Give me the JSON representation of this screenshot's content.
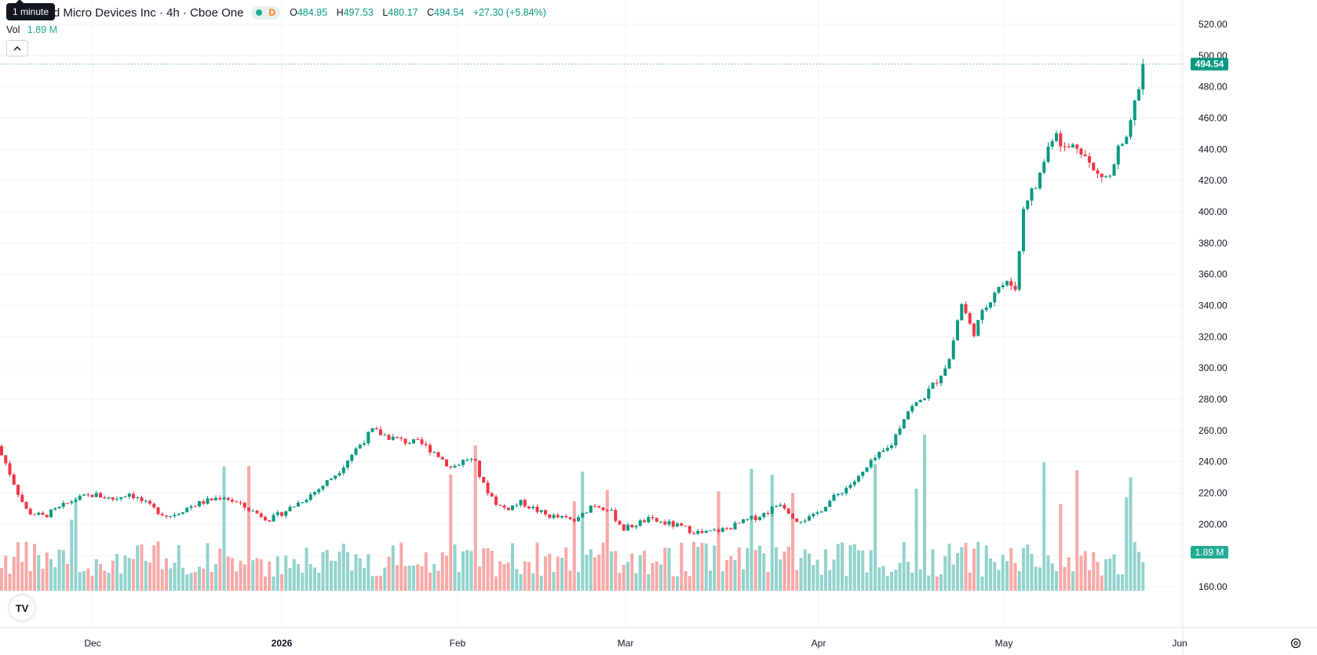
{
  "header": {
    "title": "ced Micro Devices Inc · 4h · Cboe One",
    "market_dot_icon": "market-open-dot-icon",
    "delay_badge": "D",
    "ohlc": {
      "o_label": "O",
      "o": "484.95",
      "h_label": "H",
      "h": "497.53",
      "l_label": "L",
      "l": "480.17",
      "c_label": "C",
      "c": "494.54",
      "change": "+27.30 (+5.84%)"
    },
    "tooltip": "1 minute"
  },
  "volume_indicator": {
    "label": "Vol",
    "value": "1.89 M"
  },
  "collapse_button_icon": "chevron-up-icon",
  "logo_text": "TV",
  "settings_icon": "gear-icon",
  "colors": {
    "up": "#089981",
    "down": "#f23645",
    "vol_up": "#92d2cc",
    "vol_down": "#f7a9a7",
    "grid": "#f0f3fa"
  },
  "chart_data": {
    "type": "candlestick",
    "title": "ced Micro Devices Inc · 4h · Cboe One",
    "price_axis": {
      "ticks": [
        "520.00",
        "500.00",
        "480.00",
        "460.00",
        "440.00",
        "420.00",
        "400.00",
        "380.00",
        "360.00",
        "340.00",
        "320.00",
        "300.00",
        "280.00",
        "260.00",
        "240.00",
        "220.00",
        "200.00",
        "180.00",
        "160.00"
      ],
      "range": [
        158,
        530
      ]
    },
    "time_axis": {
      "ticks": [
        "Dec",
        "2026",
        "Feb",
        "Mar",
        "Apr",
        "May",
        "Jun"
      ]
    },
    "last_price_label": "494.54",
    "last_price": 494.54,
    "last_volume_label": "1.89 M",
    "grid": true,
    "anchors": [
      [
        0,
        250
      ],
      [
        10,
        242
      ],
      [
        20,
        230
      ],
      [
        30,
        218
      ],
      [
        40,
        208
      ],
      [
        60,
        205
      ],
      [
        80,
        210
      ],
      [
        100,
        216
      ],
      [
        125,
        219
      ],
      [
        150,
        216
      ],
      [
        170,
        220
      ],
      [
        200,
        210
      ],
      [
        220,
        205
      ],
      [
        250,
        212
      ],
      [
        290,
        218
      ],
      [
        320,
        210
      ],
      [
        350,
        203
      ],
      [
        380,
        212
      ],
      [
        410,
        222
      ],
      [
        435,
        233
      ],
      [
        460,
        249
      ],
      [
        480,
        260
      ],
      [
        500,
        256
      ],
      [
        520,
        253
      ],
      [
        540,
        252
      ],
      [
        560,
        246
      ],
      [
        580,
        236
      ],
      [
        600,
        242
      ],
      [
        610,
        240
      ],
      [
        620,
        226
      ],
      [
        640,
        212
      ],
      [
        650,
        210
      ],
      [
        670,
        214
      ],
      [
        700,
        206
      ],
      [
        720,
        204
      ],
      [
        740,
        202
      ],
      [
        760,
        213
      ],
      [
        780,
        210
      ],
      [
        800,
        197
      ],
      [
        830,
        203
      ],
      [
        860,
        200
      ],
      [
        900,
        194
      ],
      [
        930,
        197
      ],
      [
        960,
        203
      ],
      [
        980,
        207
      ],
      [
        1000,
        214
      ],
      [
        1020,
        203
      ],
      [
        1040,
        204
      ],
      [
        1060,
        214
      ],
      [
        1080,
        222
      ],
      [
        1100,
        230
      ],
      [
        1120,
        242
      ],
      [
        1140,
        250
      ],
      [
        1160,
        272
      ],
      [
        1180,
        280
      ],
      [
        1200,
        293
      ],
      [
        1215,
        306
      ],
      [
        1230,
        342
      ],
      [
        1245,
        322
      ],
      [
        1260,
        338
      ],
      [
        1275,
        352
      ],
      [
        1290,
        354
      ],
      [
        1300,
        352
      ],
      [
        1310,
        407
      ],
      [
        1325,
        416
      ],
      [
        1340,
        440
      ],
      [
        1350,
        454
      ],
      [
        1360,
        440
      ],
      [
        1380,
        443
      ],
      [
        1400,
        424
      ],
      [
        1420,
        422
      ],
      [
        1430,
        440
      ],
      [
        1440,
        443
      ],
      [
        1450,
        466
      ],
      [
        1460,
        490
      ]
    ]
  }
}
